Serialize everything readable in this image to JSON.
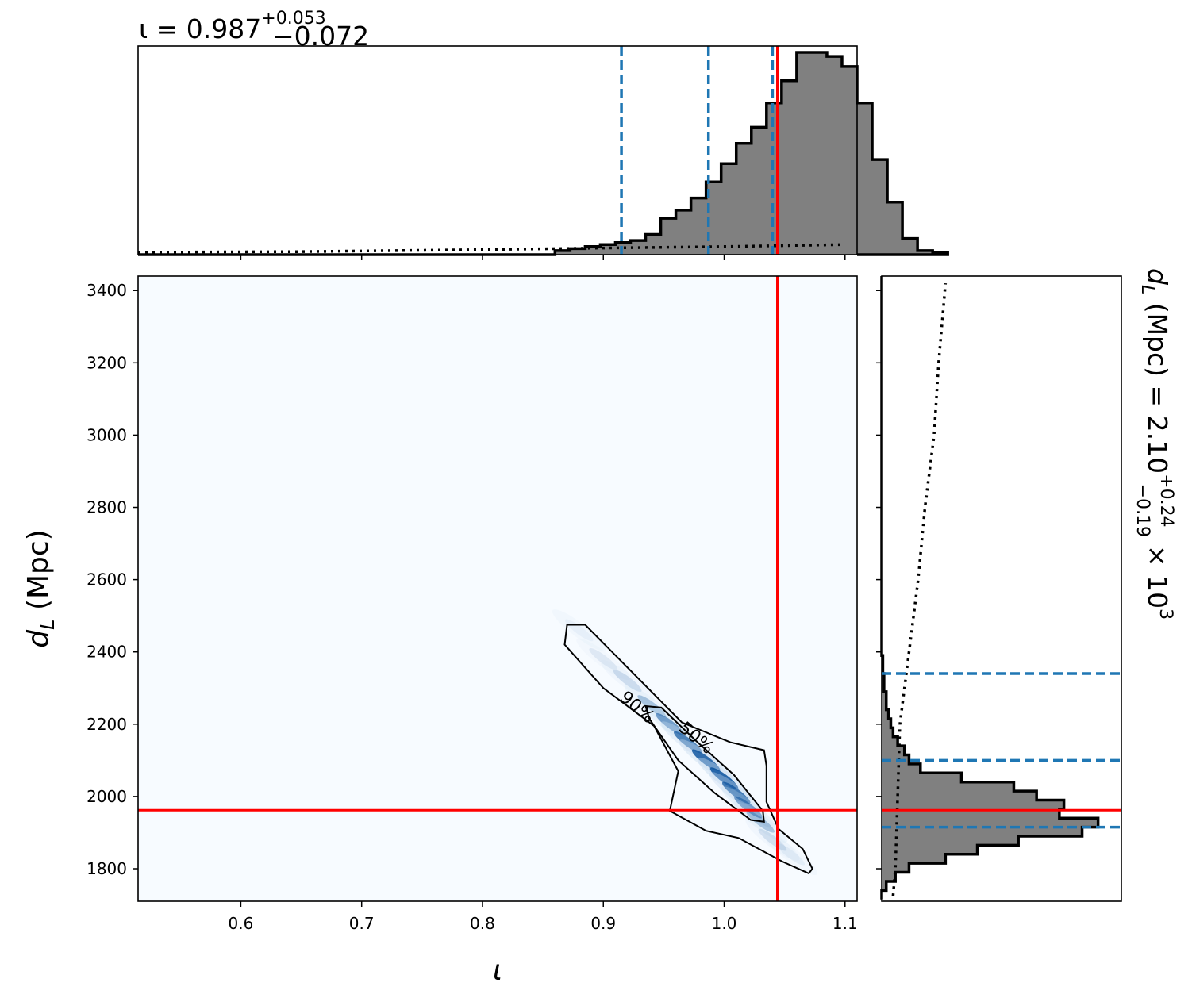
{
  "chart_data": {
    "type": "corner",
    "params": {
      "iota": {
        "label": "ι",
        "title": {
          "prefix": "ι = ",
          "median": "0.987",
          "plus": "+0.053",
          "minus": "−0.072"
        },
        "lim": [
          0.515,
          1.11
        ],
        "ticks": [
          0.6,
          0.7,
          0.8,
          0.9,
          1.0,
          1.1
        ],
        "tick_labels": [
          "0.6",
          "0.7",
          "0.8",
          "0.9",
          "1.0",
          "1.1"
        ],
        "truth": 1.044,
        "quantiles": [
          0.915,
          0.987,
          1.04
        ]
      },
      "dL": {
        "label_main": "d",
        "label_sub": "L",
        "label_unit": " (Mpc)",
        "title": {
          "prefix": "d",
          "sub": "L",
          "mid": " (Mpc) = 2.10",
          "plus": "+0.24",
          "minus": "−0.19",
          "suffix": "× 10",
          "exp": "3"
        },
        "lim": [
          1710,
          3440
        ],
        "ticks": [
          1800,
          2000,
          2200,
          2400,
          2600,
          2800,
          3000,
          3200,
          3400
        ],
        "tick_labels": [
          "1800",
          "2000",
          "2200",
          "2400",
          "2600",
          "2800",
          "3000",
          "3200",
          "3400"
        ],
        "truth": 1962,
        "quantiles": [
          1915,
          2100,
          2340
        ]
      }
    },
    "iota_hist": {
      "edges_start": 0.86,
      "bin_width": 0.0125,
      "heights": [
        0.02,
        0.03,
        0.04,
        0.05,
        0.06,
        0.07,
        0.1,
        0.18,
        0.22,
        0.28,
        0.36,
        0.45,
        0.55,
        0.63,
        0.75,
        0.86,
        1.0,
        1.0,
        0.98,
        0.93,
        0.75,
        0.47,
        0.26,
        0.08,
        0.02,
        0.01
      ],
      "prior": [
        [
          0.515,
          0.012
        ],
        [
          0.65,
          0.015
        ],
        [
          0.8,
          0.025
        ],
        [
          0.9,
          0.033
        ],
        [
          1.0,
          0.04
        ],
        [
          1.1,
          0.05
        ]
      ]
    },
    "dL_hist": {
      "edges_start": 1715,
      "bin_width": 25,
      "heights": [
        0.0,
        0.02,
        0.06,
        0.12,
        0.28,
        0.42,
        0.6,
        0.88,
        0.95,
        0.78,
        0.8,
        0.68,
        0.58,
        0.35,
        0.17,
        0.12,
        0.1,
        0.07,
        0.05,
        0.04,
        0.03,
        0.02,
        0.02,
        0.01,
        0.01,
        0.005,
        0.005
      ],
      "prior": [
        [
          1725,
          0.05
        ],
        [
          1800,
          0.06
        ],
        [
          2000,
          0.07
        ],
        [
          2200,
          0.08
        ],
        [
          2400,
          0.12
        ],
        [
          2600,
          0.16
        ],
        [
          2800,
          0.19
        ],
        [
          3000,
          0.23
        ],
        [
          3200,
          0.25
        ],
        [
          3420,
          0.28
        ]
      ]
    },
    "contours": [
      {
        "level": "90%",
        "points": [
          [
            0.87,
            2475
          ],
          [
            0.885,
            2475
          ],
          [
            0.925,
            2340
          ],
          [
            0.965,
            2205
          ],
          [
            1.005,
            2150
          ],
          [
            1.033,
            2128
          ],
          [
            1.035,
            2085
          ],
          [
            1.035,
            1985
          ],
          [
            1.045,
            1910
          ],
          [
            1.065,
            1855
          ],
          [
            1.073,
            1800
          ],
          [
            1.07,
            1787
          ],
          [
            1.048,
            1820
          ],
          [
            1.012,
            1885
          ],
          [
            0.985,
            1905
          ],
          [
            0.955,
            1960
          ],
          [
            0.962,
            2070
          ],
          [
            0.942,
            2195
          ],
          [
            0.9,
            2300
          ],
          [
            0.868,
            2420
          ]
        ]
      },
      {
        "level": "50%",
        "points": [
          [
            0.935,
            2250
          ],
          [
            0.948,
            2246
          ],
          [
            0.978,
            2150
          ],
          [
            1.008,
            2060
          ],
          [
            1.032,
            1960
          ],
          [
            1.033,
            1930
          ],
          [
            1.022,
            1935
          ],
          [
            0.992,
            2010
          ],
          [
            0.962,
            2100
          ],
          [
            0.938,
            2215
          ]
        ]
      }
    ],
    "contour_labels": [
      "90%",
      "50%"
    ],
    "colors": {
      "hist_fill": "#808080",
      "hist_edge": "#000000",
      "quantile": "#1f77b4",
      "truth": "#ff0000",
      "contour": "#000000",
      "density_bg": "#f7fbff",
      "density_high": "#08519c"
    }
  }
}
